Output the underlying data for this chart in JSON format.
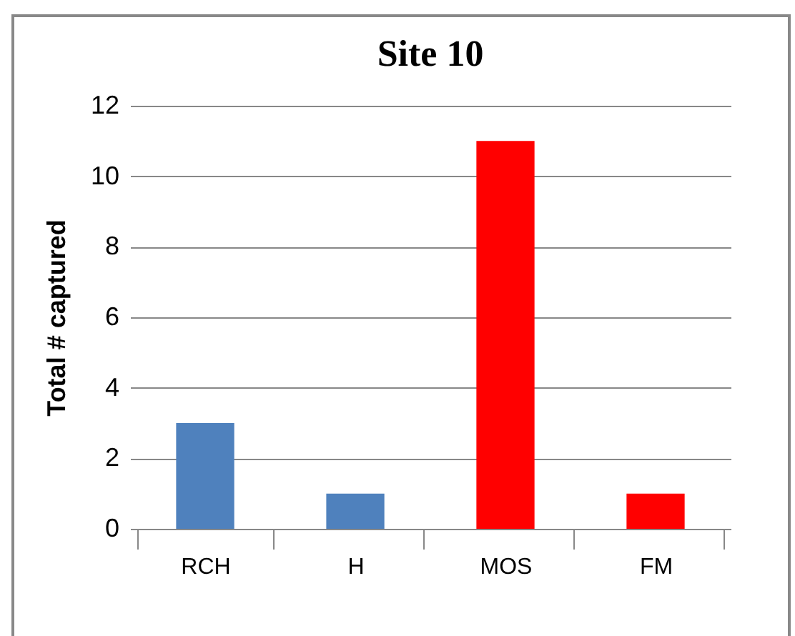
{
  "chart_data": {
    "type": "bar",
    "title": "Site 10",
    "ylabel": "Total # captured",
    "categories": [
      "RCH",
      "H",
      "MOS",
      "FM"
    ],
    "values": [
      3,
      1,
      11,
      1
    ],
    "colors": [
      "#4f81bd",
      "#4f81bd",
      "#ff0000",
      "#ff0000"
    ],
    "ylim": [
      0,
      12
    ],
    "yticks": [
      0,
      2,
      4,
      6,
      8,
      10,
      12
    ],
    "grid": "y"
  }
}
